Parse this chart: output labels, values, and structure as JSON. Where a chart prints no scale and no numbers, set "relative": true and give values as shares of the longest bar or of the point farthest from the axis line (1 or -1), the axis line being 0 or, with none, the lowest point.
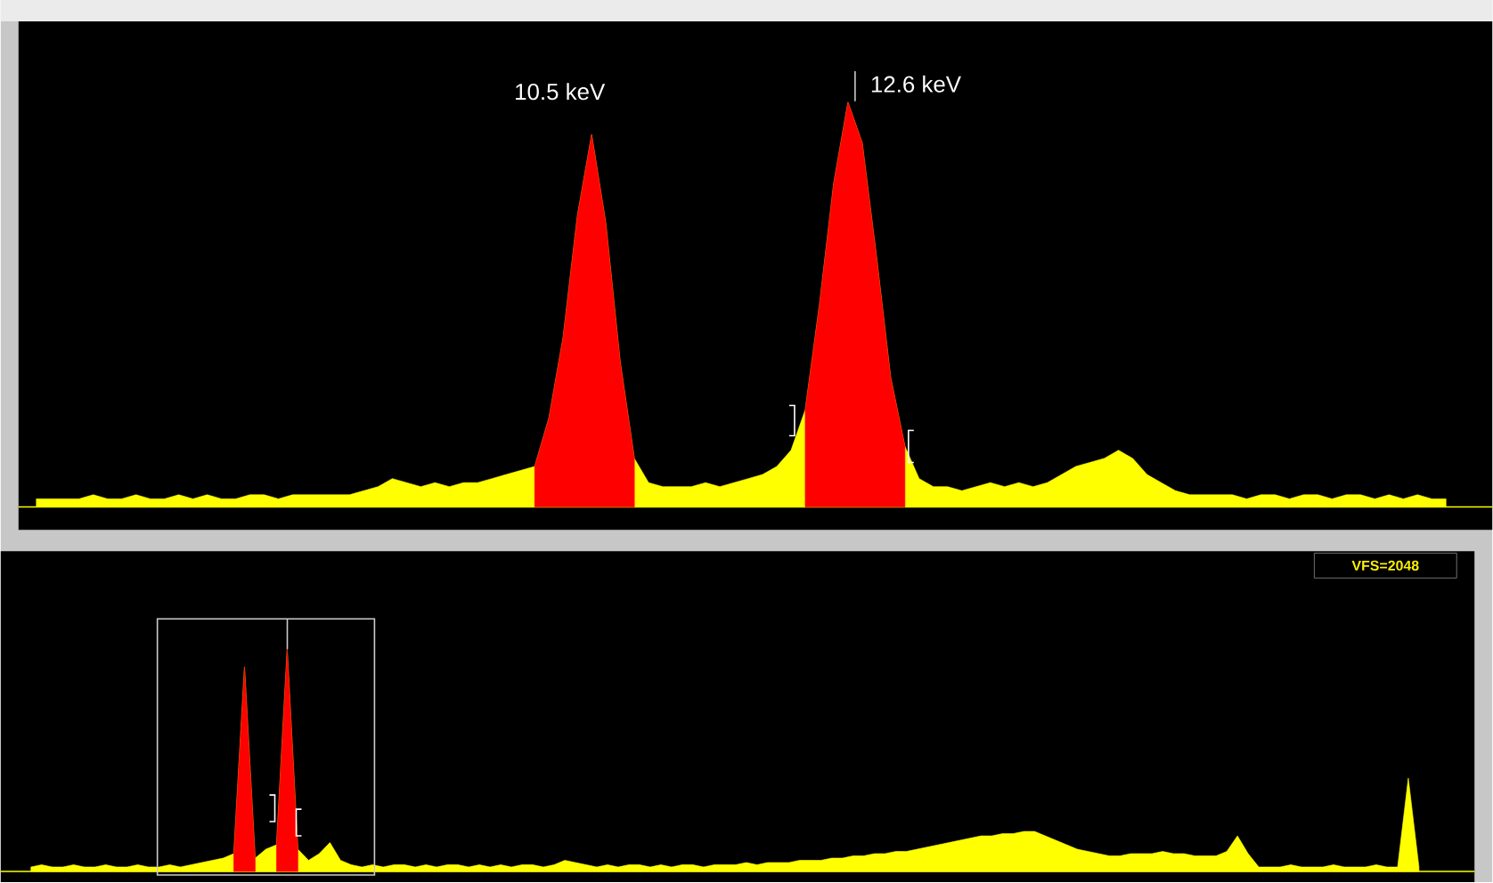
{
  "chart_data": [
    {
      "type": "area",
      "relative": true,
      "categories": [
        null,
        null,
        null,
        null,
        null,
        null,
        null,
        null,
        null,
        null,
        null,
        null,
        null,
        null,
        null,
        null,
        null,
        null,
        null,
        null,
        null,
        null,
        null,
        null,
        null,
        null,
        null,
        null,
        null,
        null,
        null,
        null,
        null,
        null,
        null,
        null,
        null,
        null,
        null,
        null,
        null,
        null,
        null,
        null,
        null,
        null,
        null,
        null,
        null,
        null,
        null,
        null,
        null,
        null,
        null,
        null,
        null,
        null,
        null,
        null,
        null,
        null,
        null,
        null,
        null,
        null,
        null,
        null,
        null,
        null,
        null,
        null,
        null,
        null,
        null,
        null,
        null,
        null,
        null,
        null,
        null,
        null,
        null,
        null,
        null,
        null,
        null,
        null,
        null,
        null,
        null,
        null,
        null,
        null,
        null,
        null,
        null,
        null,
        null,
        null
      ],
      "series": [
        {
          "color": "#ffff00",
          "values": [
            0.02,
            0.02,
            0.02,
            0.02,
            0.03,
            0.02,
            0.02,
            0.03,
            0.02,
            0.02,
            0.03,
            0.02,
            0.03,
            0.02,
            0.02,
            0.03,
            0.03,
            0.02,
            0.03,
            0.03,
            0.03,
            0.03,
            0.03,
            0.04,
            0.05,
            0.07,
            0.06,
            0.05,
            0.06,
            0.05,
            0.06,
            0.06,
            0.07,
            0.08,
            0.09,
            0.1,
            0.22,
            0.42,
            0.72,
            0.92,
            0.7,
            0.36,
            0.12,
            0.06,
            0.05,
            0.05,
            0.05,
            0.06,
            0.05,
            0.06,
            0.07,
            0.08,
            0.1,
            0.14,
            0.24,
            0.5,
            0.8,
            1.0,
            0.9,
            0.62,
            0.32,
            0.15,
            0.07,
            0.05,
            0.05,
            0.04,
            0.05,
            0.06,
            0.05,
            0.06,
            0.05,
            0.06,
            0.08,
            0.1,
            0.11,
            0.12,
            0.14,
            0.12,
            0.08,
            0.06,
            0.04,
            0.03,
            0.03,
            0.03,
            0.03,
            0.02,
            0.03,
            0.03,
            0.02,
            0.03,
            0.03,
            0.02,
            0.03,
            0.03,
            0.02,
            0.03,
            0.02,
            0.03,
            0.02,
            0.02
          ]
        },
        {
          "color": "#ff0000",
          "values": [
            null,
            null,
            null,
            null,
            null,
            null,
            null,
            null,
            null,
            null,
            null,
            null,
            null,
            null,
            null,
            null,
            null,
            null,
            null,
            null,
            null,
            null,
            null,
            null,
            null,
            null,
            null,
            null,
            null,
            null,
            null,
            null,
            null,
            null,
            null,
            0.1,
            0.22,
            0.42,
            0.72,
            0.92,
            0.7,
            0.36,
            0.12,
            null,
            null,
            null,
            null,
            null,
            null,
            null,
            null,
            null,
            null,
            null,
            0.24,
            0.5,
            0.8,
            1.0,
            0.9,
            0.62,
            0.32,
            0.15,
            null,
            null,
            null,
            null,
            null,
            null,
            null,
            null,
            null,
            null,
            null,
            null,
            null,
            null,
            null,
            null,
            null,
            null,
            null,
            null,
            null,
            null,
            null,
            null,
            null,
            null,
            null,
            null,
            null,
            null,
            null,
            null,
            null,
            null,
            null,
            null,
            null,
            null
          ]
        }
      ],
      "annotations": [
        "10.5 keV",
        "12.6 keV"
      ]
    },
    {
      "type": "area",
      "relative": true,
      "categories": [
        null,
        null,
        null,
        null,
        null,
        null,
        null,
        null,
        null,
        null,
        null,
        null,
        null,
        null,
        null,
        null,
        null,
        null,
        null,
        null,
        null,
        null,
        null,
        null,
        null,
        null,
        null,
        null,
        null,
        null,
        null,
        null,
        null,
        null,
        null,
        null,
        null,
        null,
        null,
        null,
        null,
        null,
        null,
        null,
        null,
        null,
        null,
        null,
        null,
        null,
        null,
        null,
        null,
        null,
        null,
        null,
        null,
        null,
        null,
        null,
        null,
        null,
        null,
        null,
        null,
        null,
        null,
        null,
        null,
        null,
        null,
        null,
        null,
        null,
        null,
        null,
        null,
        null,
        null,
        null,
        null,
        null,
        null,
        null,
        null,
        null,
        null,
        null,
        null,
        null,
        null,
        null,
        null,
        null,
        null,
        null,
        null,
        null,
        null,
        null,
        null,
        null,
        null,
        null,
        null,
        null,
        null,
        null,
        null,
        null,
        null,
        null,
        null,
        null,
        null,
        null,
        null,
        null,
        null,
        null,
        null,
        null,
        null,
        null,
        null,
        null,
        null,
        null,
        null,
        null,
        null
      ],
      "series": [
        {
          "color": "#ffff00",
          "values": [
            0.02,
            0.03,
            0.02,
            0.02,
            0.03,
            0.02,
            0.02,
            0.03,
            0.02,
            0.02,
            0.03,
            0.02,
            0.02,
            0.03,
            0.02,
            0.03,
            0.04,
            0.05,
            0.06,
            0.08,
            0.92,
            0.06,
            0.1,
            0.12,
            1.0,
            0.1,
            0.05,
            0.08,
            0.13,
            0.05,
            0.03,
            0.02,
            0.03,
            0.02,
            0.03,
            0.03,
            0.02,
            0.03,
            0.02,
            0.03,
            0.03,
            0.02,
            0.03,
            0.02,
            0.03,
            0.02,
            0.03,
            0.03,
            0.02,
            0.03,
            0.05,
            0.04,
            0.03,
            0.02,
            0.03,
            0.02,
            0.03,
            0.03,
            0.02,
            0.03,
            0.02,
            0.03,
            0.03,
            0.02,
            0.03,
            0.03,
            0.03,
            0.04,
            0.03,
            0.04,
            0.04,
            0.04,
            0.05,
            0.05,
            0.05,
            0.06,
            0.06,
            0.07,
            0.07,
            0.08,
            0.08,
            0.09,
            0.09,
            0.1,
            0.11,
            0.12,
            0.13,
            0.14,
            0.15,
            0.16,
            0.16,
            0.17,
            0.17,
            0.18,
            0.18,
            0.16,
            0.14,
            0.12,
            0.1,
            0.09,
            0.08,
            0.07,
            0.07,
            0.08,
            0.08,
            0.08,
            0.09,
            0.08,
            0.08,
            0.07,
            0.07,
            0.07,
            0.09,
            0.16,
            0.08,
            0.02,
            0.02,
            0.02,
            0.03,
            0.02,
            0.02,
            0.02,
            0.03,
            0.02,
            0.02,
            0.02,
            0.03,
            0.02,
            0.02,
            0.42,
            0.02
          ]
        },
        {
          "color": "#ff0000",
          "values": [
            null,
            null,
            null,
            null,
            null,
            null,
            null,
            null,
            null,
            null,
            null,
            null,
            null,
            null,
            null,
            null,
            null,
            null,
            null,
            0.08,
            0.92,
            0.06,
            null,
            0.12,
            1.0,
            0.1,
            null,
            null,
            null,
            null,
            null,
            null,
            null,
            null,
            null,
            null,
            null,
            null,
            null,
            null,
            null,
            null,
            null,
            null,
            null,
            null,
            null,
            null,
            null,
            null,
            null,
            null,
            null,
            null,
            null,
            null,
            null,
            null,
            null,
            null,
            null,
            null,
            null,
            null,
            null,
            null,
            null,
            null,
            null,
            null,
            null,
            null,
            null,
            null,
            null,
            null,
            null,
            null,
            null,
            null,
            null,
            null,
            null,
            null,
            null,
            null,
            null,
            null,
            null,
            null,
            null,
            null,
            null,
            null,
            null,
            null,
            null,
            null,
            null,
            null,
            null,
            null,
            null,
            null,
            null,
            null,
            null,
            null,
            null,
            null,
            null,
            null,
            null,
            null,
            null,
            null,
            null,
            null,
            null,
            null,
            null,
            null,
            null,
            null,
            null,
            null,
            null,
            null,
            null,
            null,
            null
          ]
        }
      ],
      "annotations": [
        "VFS=2048"
      ]
    }
  ]
}
